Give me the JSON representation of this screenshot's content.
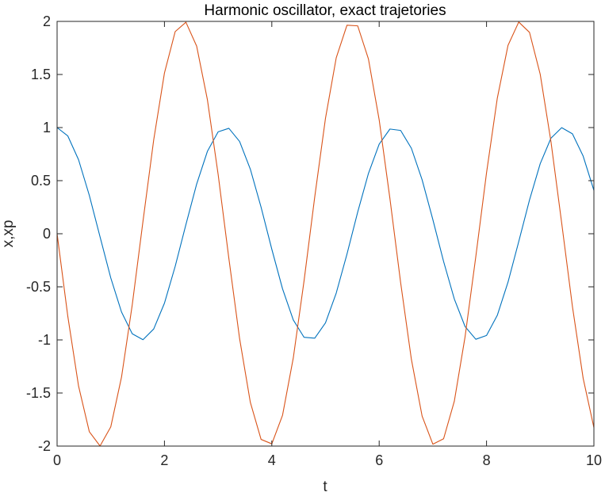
{
  "chart_data": {
    "type": "line",
    "title": "Harmonic oscillator, exact trajetories",
    "xlabel": "t",
    "ylabel": "x,xp",
    "xlim": [
      0,
      10
    ],
    "ylim": [
      -2,
      2
    ],
    "xticks": [
      0,
      2,
      4,
      6,
      8,
      10
    ],
    "xtick_labels": [
      "0",
      "2",
      "4",
      "6",
      "8",
      "10"
    ],
    "yticks": [
      -2,
      -1.5,
      -1,
      -0.5,
      0,
      0.5,
      1,
      1.5,
      2
    ],
    "ytick_labels": [
      "-2",
      "-1.5",
      "-1",
      "-0.5",
      "0",
      "0.5",
      "1",
      "1.5",
      "2"
    ],
    "grid": false,
    "legend": "none",
    "series": [
      {
        "color": "#0072BD",
        "x": [
          0,
          0.2,
          0.4,
          0.6,
          0.8,
          1.0,
          1.2,
          1.4,
          1.6,
          1.8,
          2.0,
          2.2,
          2.4,
          2.6,
          2.8,
          3.0,
          3.2,
          3.4,
          3.6,
          3.8,
          4.0,
          4.2,
          4.4,
          4.6,
          4.8,
          5.0,
          5.2,
          5.4,
          5.6,
          5.8,
          6.0,
          6.2,
          6.4,
          6.6,
          6.8,
          7.0,
          7.2,
          7.4,
          7.6,
          7.8,
          8.0,
          8.2,
          8.4,
          8.6,
          8.8,
          9.0,
          9.2,
          9.4,
          9.6,
          9.8,
          10.0
        ],
        "values": [
          1.0,
          0.921,
          0.697,
          0.362,
          -0.029,
          -0.416,
          -0.737,
          -0.942,
          -0.998,
          -0.897,
          -0.654,
          -0.307,
          0.087,
          0.468,
          0.776,
          0.96,
          0.993,
          0.869,
          0.608,
          0.25,
          -0.146,
          -0.519,
          -0.812,
          -0.975,
          -0.984,
          -0.839,
          -0.559,
          -0.192,
          0.204,
          0.568,
          0.844,
          0.986,
          0.973,
          0.805,
          0.508,
          0.133,
          -0.261,
          -0.615,
          -0.874,
          -0.994,
          -0.958,
          -0.769,
          -0.456,
          -0.074,
          0.317,
          0.66,
          0.9,
          0.999,
          0.941,
          0.731,
          0.408
        ]
      },
      {
        "color": "#D95319",
        "x": [
          0,
          0.2,
          0.4,
          0.6,
          0.8,
          1.0,
          1.2,
          1.4,
          1.6,
          1.8,
          2.0,
          2.2,
          2.4,
          2.6,
          2.8,
          3.0,
          3.2,
          3.4,
          3.6,
          3.8,
          4.0,
          4.2,
          4.4,
          4.6,
          4.8,
          5.0,
          5.2,
          5.4,
          5.6,
          5.8,
          6.0,
          6.2,
          6.4,
          6.6,
          6.8,
          7.0,
          7.2,
          7.4,
          7.6,
          7.8,
          8.0,
          8.2,
          8.4,
          8.6,
          8.8,
          9.0,
          9.2,
          9.4,
          9.6,
          9.8,
          10.0
        ],
        "values": [
          0,
          -0.779,
          -1.435,
          -1.864,
          -1.999,
          -1.819,
          -1.351,
          -0.67,
          0.117,
          0.885,
          1.514,
          1.904,
          1.992,
          1.767,
          1.263,
          0.559,
          -0.233,
          -0.988,
          -1.588,
          -1.937,
          -1.979,
          -1.709,
          -1.17,
          -0.446,
          0.348,
          1.088,
          1.657,
          1.964,
          1.958,
          1.646,
          1.073,
          0.332,
          -0.461,
          -1.183,
          -1.718,
          -1.982,
          -1.931,
          -1.577,
          -0.971,
          -0.216,
          0.574,
          1.275,
          1.774,
          1.994,
          1.897,
          1.502,
          0.868,
          0.1,
          -0.685,
          -1.362,
          -1.826
        ]
      }
    ]
  }
}
